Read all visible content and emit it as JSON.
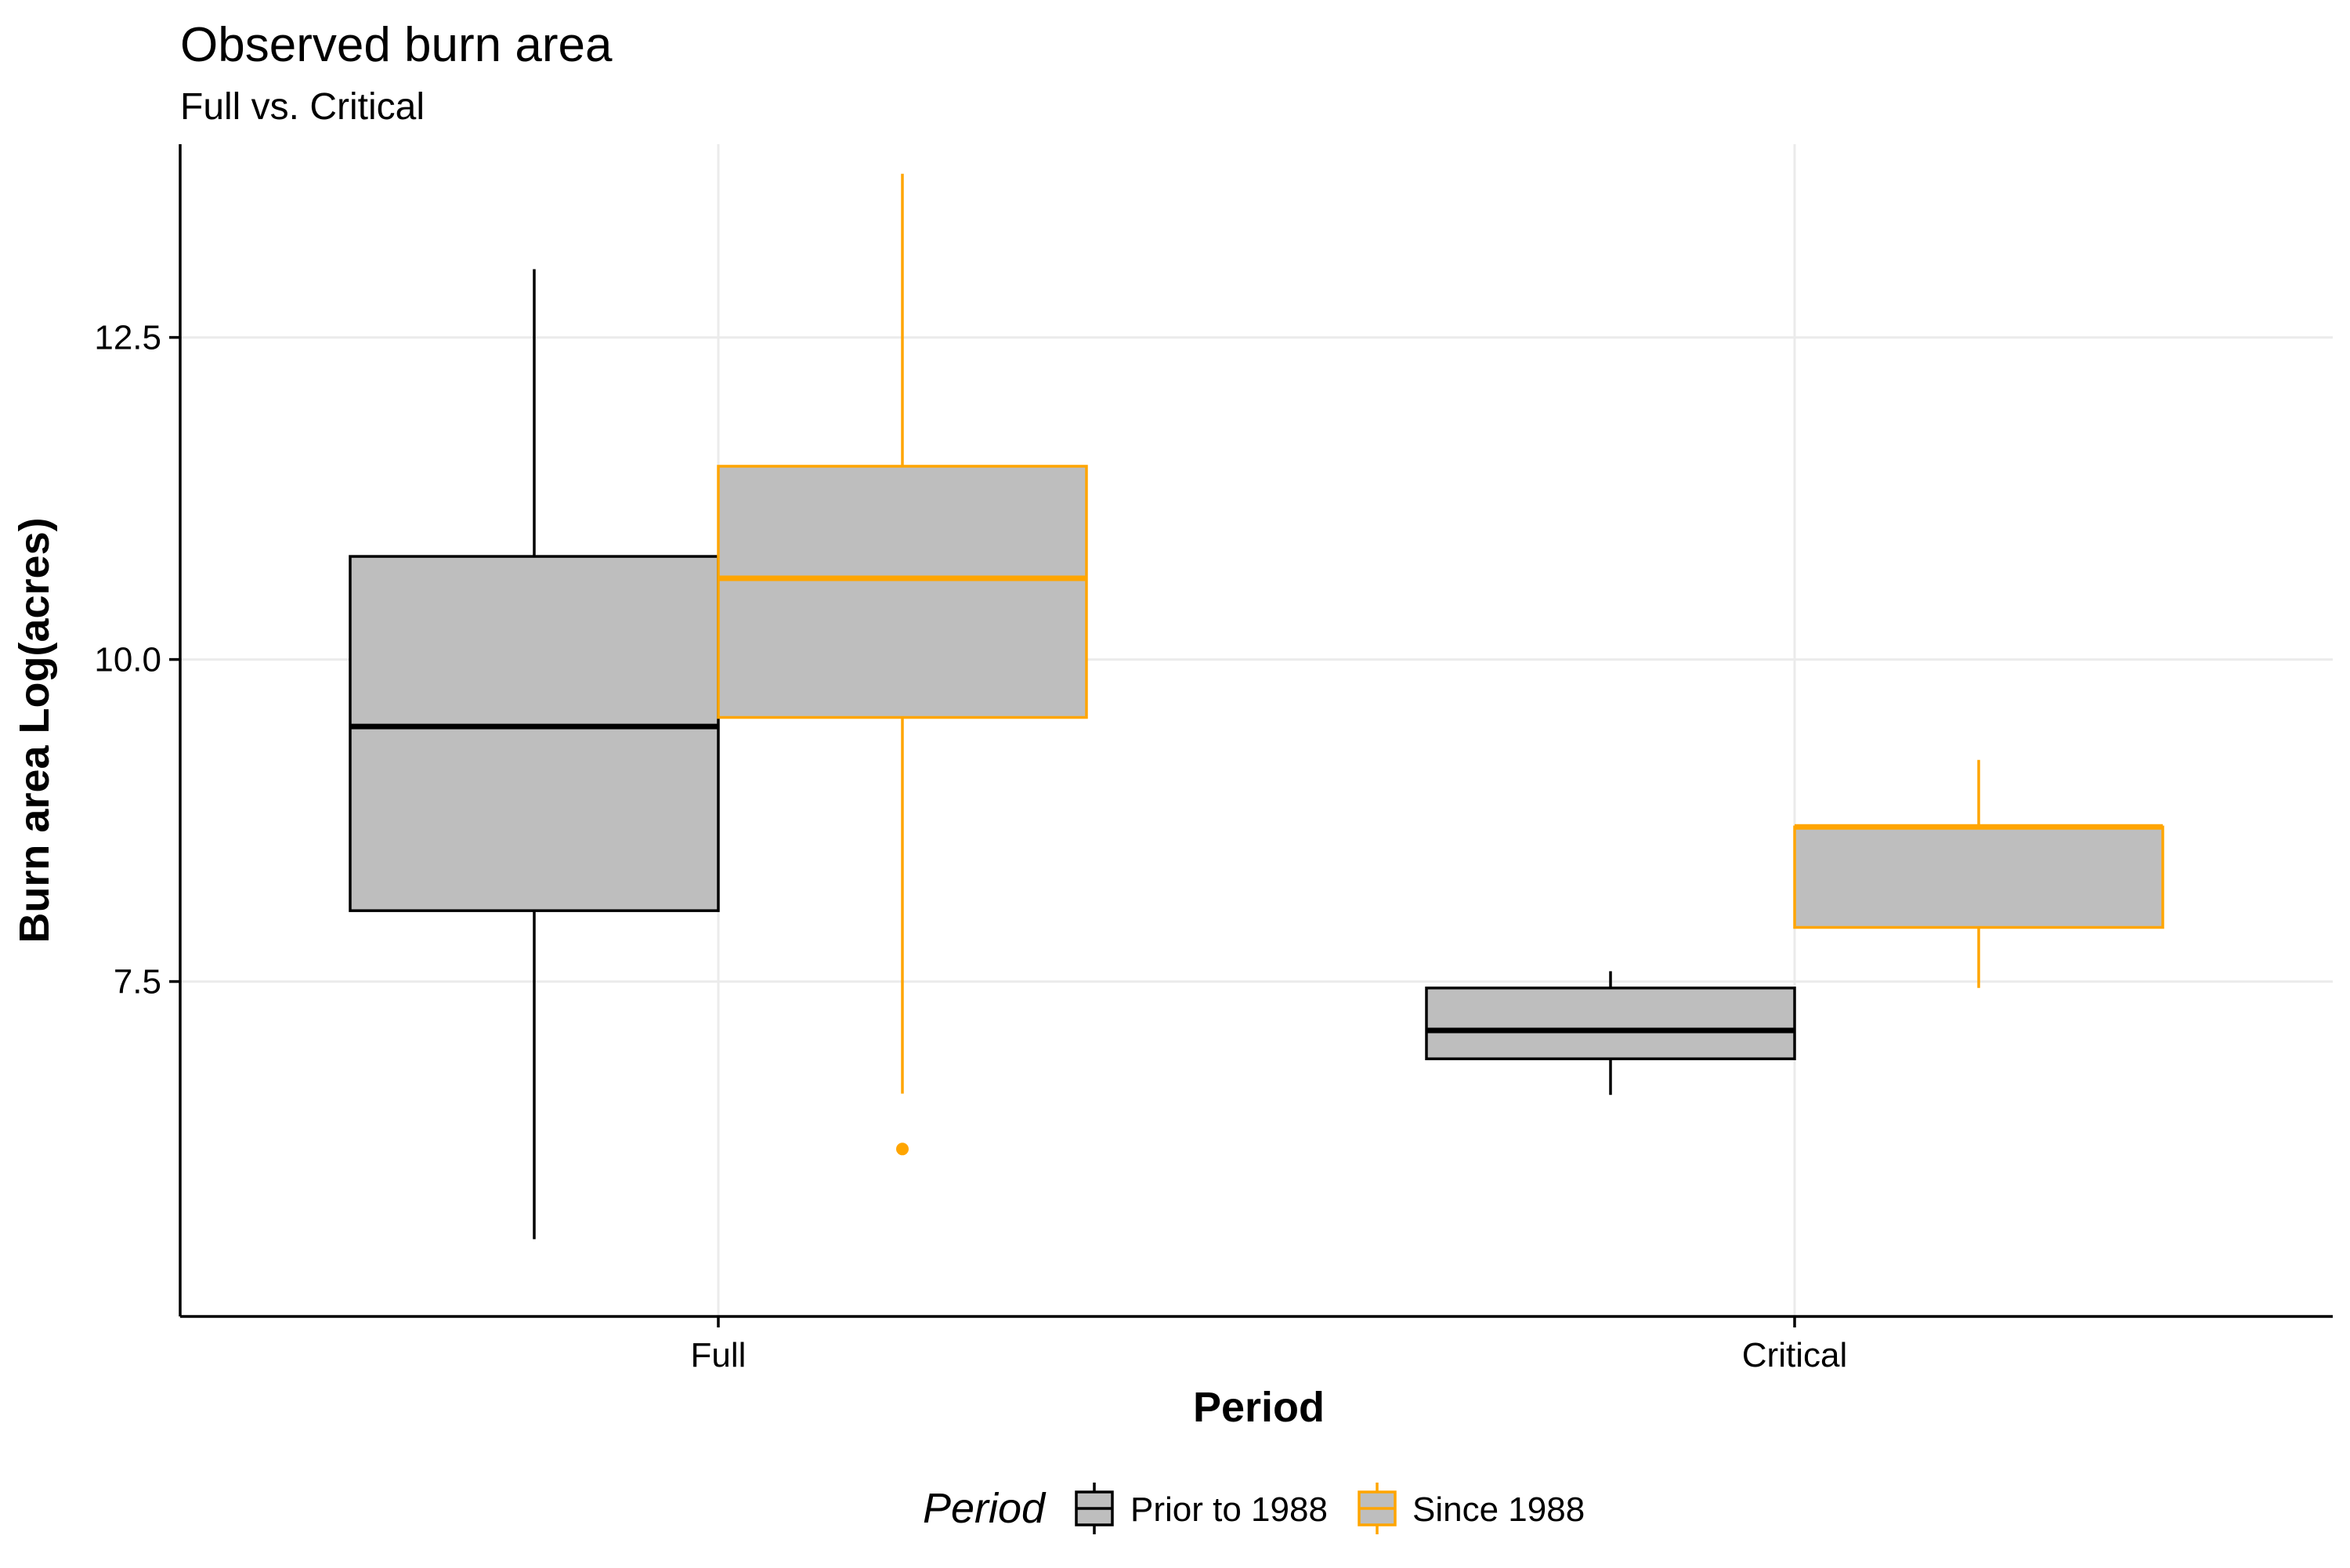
{
  "chart_data": {
    "type": "boxplot",
    "title": "Observed burn area",
    "subtitle": "Full vs. Critical",
    "xlabel": "Period",
    "ylabel": "Burn area Log(acres)",
    "categories": [
      "Full",
      "Critical"
    ],
    "yticks": [
      7.5,
      10.0,
      12.5
    ],
    "ytick_labels": [
      "7.5",
      "10.0",
      "12.5"
    ],
    "ylim": [
      4.9,
      14.0
    ],
    "grid": true,
    "legend": {
      "title": "Period",
      "position": "bottom",
      "entries": [
        "Prior to 1988",
        "Since 1988"
      ]
    },
    "series": [
      {
        "name": "Prior to 1988",
        "color": "#000000",
        "fill": "#bebebe",
        "boxes": [
          {
            "category": "Full",
            "whisker_low": 5.5,
            "q1": 8.05,
            "median": 9.48,
            "q3": 10.8,
            "whisker_high": 13.03,
            "outliers": []
          },
          {
            "category": "Critical",
            "whisker_low": 6.62,
            "q1": 6.9,
            "median": 7.12,
            "q3": 7.45,
            "whisker_high": 7.58,
            "outliers": []
          }
        ]
      },
      {
        "name": "Since 1988",
        "color": "#ffa500",
        "fill": "#bebebe",
        "boxes": [
          {
            "category": "Full",
            "whisker_low": 6.63,
            "q1": 9.55,
            "median": 10.63,
            "q3": 11.5,
            "whisker_high": 13.77,
            "outliers": [
              6.2
            ]
          },
          {
            "category": "Critical",
            "whisker_low": 7.45,
            "q1": 7.92,
            "median": 8.7,
            "q3": 8.7,
            "whisker_high": 9.22,
            "outliers": []
          }
        ]
      }
    ]
  }
}
